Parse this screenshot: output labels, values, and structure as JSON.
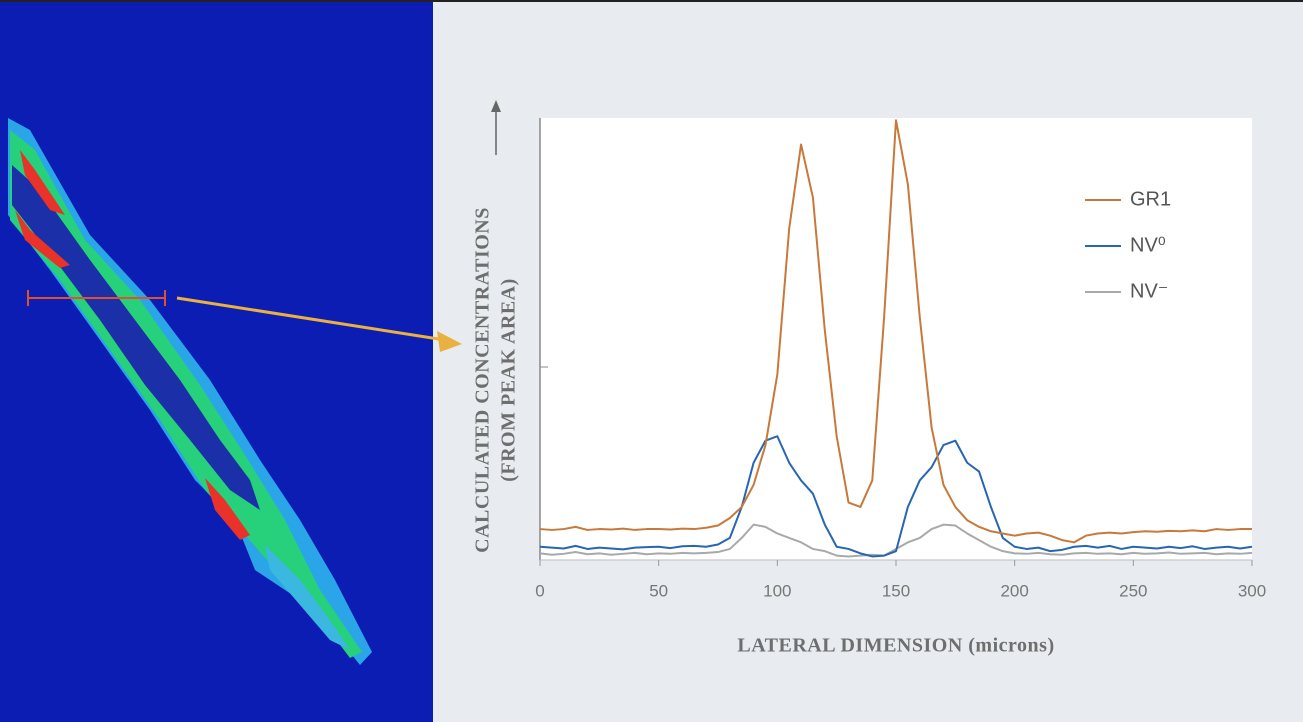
{
  "chart_data": {
    "type": "line",
    "ylabel": [
      "CALCULATED  CONCENTRATIONS",
      "(FROM PEAK AREA)"
    ],
    "xlabel": "LATERAL DIMENSION (microns)",
    "x": [
      0,
      5,
      10,
      15,
      20,
      25,
      30,
      35,
      40,
      45,
      50,
      55,
      60,
      65,
      70,
      75,
      80,
      85,
      90,
      95,
      100,
      105,
      110,
      115,
      120,
      125,
      130,
      135,
      140,
      145,
      150,
      155,
      160,
      165,
      170,
      175,
      180,
      185,
      190,
      195,
      200,
      205,
      210,
      215,
      220,
      225,
      230,
      235,
      240,
      245,
      250,
      255,
      260,
      265,
      270,
      275,
      280,
      285,
      290,
      295,
      300
    ],
    "xlim": [
      0,
      300
    ],
    "xticks": [
      0,
      50,
      100,
      150,
      200,
      250,
      300
    ],
    "ylim": [
      0,
      100
    ],
    "legend": "upper right",
    "series": [
      {
        "name": "GR1",
        "color": "#c8793a",
        "values": [
          7,
          6.8,
          7,
          7.5,
          6.8,
          7,
          6.9,
          7.1,
          6.8,
          7,
          7,
          6.9,
          7.1,
          7,
          7.3,
          7.8,
          9.5,
          12,
          17,
          26,
          42,
          75,
          94,
          82,
          52,
          28,
          13,
          12,
          18,
          55,
          99.5,
          85,
          55,
          30,
          17,
          12,
          9,
          7.5,
          6.5,
          6,
          5.5,
          6,
          6.2,
          5.5,
          4.5,
          4,
          5.5,
          6,
          6.2,
          6,
          6.3,
          6.5,
          6.4,
          6.6,
          6.5,
          6.7,
          6.5,
          7,
          6.8,
          7,
          7
        ]
      },
      {
        "name": "NV⁰",
        "color": "#2766b0",
        "values": [
          3,
          2.8,
          2.6,
          3.2,
          2.5,
          2.8,
          2.6,
          2.4,
          2.8,
          2.9,
          3,
          2.7,
          3.1,
          3.2,
          3,
          3.5,
          5,
          12,
          22,
          27,
          28,
          22,
          18,
          15,
          8,
          3,
          2.5,
          1.5,
          0.8,
          1,
          2,
          12,
          18,
          21,
          26,
          27,
          22,
          20,
          12,
          5,
          3,
          2.5,
          2.8,
          2,
          2.3,
          3,
          3.2,
          2.8,
          3.2,
          2.5,
          3,
          2.8,
          2.6,
          3,
          2.7,
          3.1,
          2.5,
          2.8,
          3,
          2.6,
          3
        ]
      },
      {
        "name": "NV⁻",
        "color": "#a9a9a9",
        "values": [
          1.5,
          1.2,
          1.4,
          1.8,
          1.3,
          1.5,
          1.2,
          1.4,
          1.6,
          1.3,
          1.5,
          1.4,
          1.6,
          1.5,
          1.6,
          1.8,
          2.5,
          5,
          8,
          7.5,
          6,
          5,
          4,
          2.5,
          2,
          1,
          0.8,
          1,
          1.2,
          1,
          2.5,
          4,
          5,
          7,
          8,
          7.8,
          6,
          4.5,
          3,
          2,
          1.5,
          1.4,
          1.6,
          1.3,
          1.2,
          1.5,
          1.6,
          1.4,
          1.5,
          1.3,
          1.6,
          1.4,
          1.5,
          1.7,
          1.4,
          1.5,
          1.6,
          1.3,
          1.5,
          1.4,
          1.6
        ]
      }
    ]
  }
}
